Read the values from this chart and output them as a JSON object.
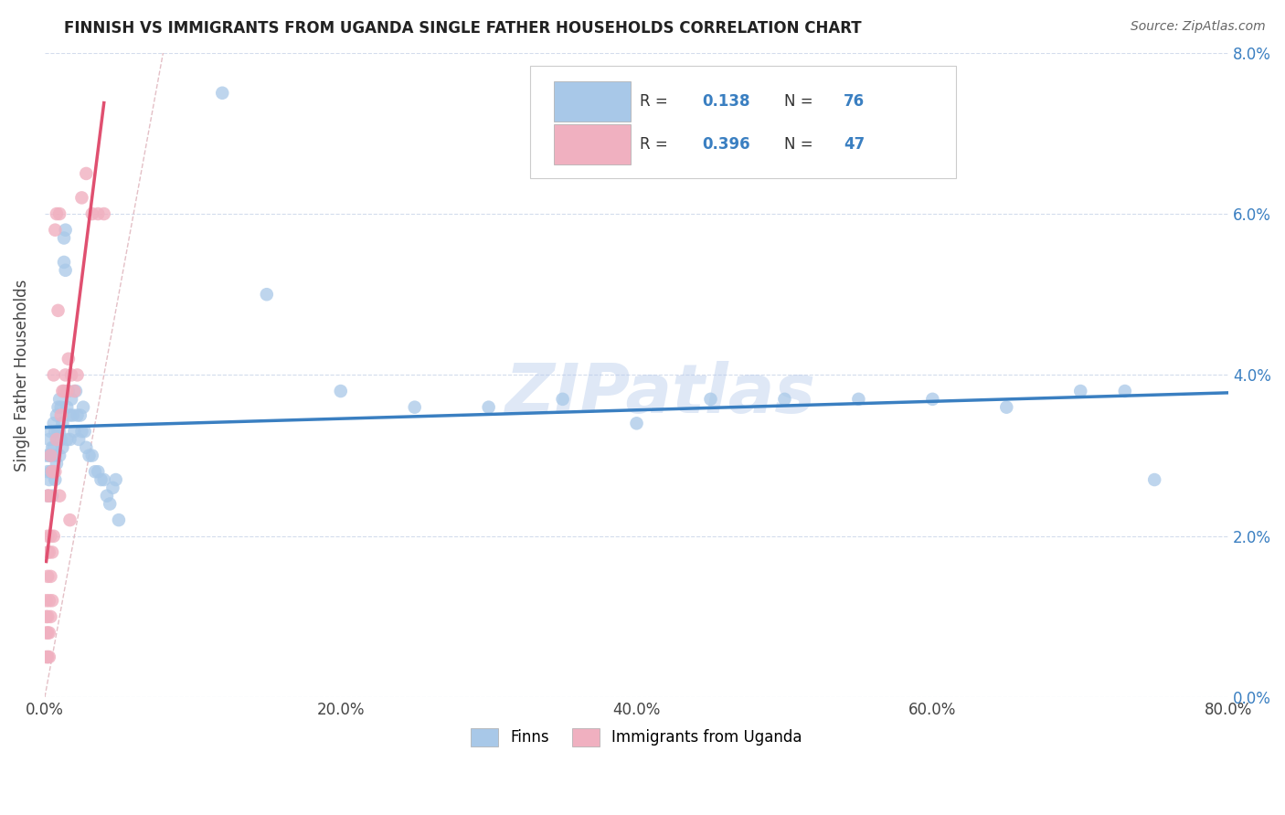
{
  "title": "FINNISH VS IMMIGRANTS FROM UGANDA SINGLE FATHER HOUSEHOLDS CORRELATION CHART",
  "source": "Source: ZipAtlas.com",
  "ylabel": "Single Father Households",
  "finn_color": "#a8c8e8",
  "uganda_color": "#f0b0c0",
  "finn_line_color": "#3a7fc1",
  "uganda_line_color": "#e05070",
  "diagonal_color": "#e8b0b8",
  "watermark": "ZIPatlas",
  "xlim": [
    0.0,
    0.8
  ],
  "ylim": [
    0.0,
    0.08
  ],
  "x_ticks": [
    0.0,
    0.2,
    0.4,
    0.6,
    0.8
  ],
  "y_ticks": [
    0.0,
    0.02,
    0.04,
    0.06,
    0.08
  ],
  "finn_R": 0.138,
  "finn_N": 76,
  "uganda_R": 0.396,
  "uganda_N": 47,
  "finn_scatter_x": [
    0.001,
    0.002,
    0.002,
    0.003,
    0.003,
    0.003,
    0.004,
    0.004,
    0.004,
    0.005,
    0.005,
    0.005,
    0.006,
    0.006,
    0.006,
    0.007,
    0.007,
    0.007,
    0.008,
    0.008,
    0.008,
    0.009,
    0.009,
    0.01,
    0.01,
    0.01,
    0.011,
    0.011,
    0.012,
    0.012,
    0.013,
    0.013,
    0.014,
    0.014,
    0.015,
    0.015,
    0.016,
    0.017,
    0.017,
    0.018,
    0.019,
    0.02,
    0.021,
    0.022,
    0.023,
    0.024,
    0.025,
    0.026,
    0.027,
    0.028,
    0.03,
    0.032,
    0.034,
    0.036,
    0.038,
    0.04,
    0.042,
    0.044,
    0.046,
    0.048,
    0.05,
    0.12,
    0.15,
    0.2,
    0.25,
    0.3,
    0.35,
    0.4,
    0.45,
    0.5,
    0.55,
    0.6,
    0.65,
    0.7,
    0.73,
    0.75
  ],
  "finn_scatter_y": [
    0.03,
    0.028,
    0.025,
    0.032,
    0.03,
    0.027,
    0.033,
    0.03,
    0.028,
    0.031,
    0.028,
    0.025,
    0.034,
    0.031,
    0.028,
    0.033,
    0.03,
    0.027,
    0.035,
    0.032,
    0.029,
    0.036,
    0.033,
    0.037,
    0.033,
    0.03,
    0.036,
    0.032,
    0.034,
    0.031,
    0.054,
    0.057,
    0.053,
    0.058,
    0.036,
    0.032,
    0.038,
    0.035,
    0.032,
    0.037,
    0.035,
    0.033,
    0.038,
    0.035,
    0.032,
    0.035,
    0.033,
    0.036,
    0.033,
    0.031,
    0.03,
    0.03,
    0.028,
    0.028,
    0.027,
    0.027,
    0.025,
    0.024,
    0.026,
    0.027,
    0.022,
    0.075,
    0.05,
    0.038,
    0.036,
    0.036,
    0.037,
    0.034,
    0.037,
    0.037,
    0.037,
    0.037,
    0.036,
    0.038,
    0.038,
    0.027
  ],
  "uganda_scatter_x": [
    0.001,
    0.001,
    0.001,
    0.001,
    0.002,
    0.002,
    0.002,
    0.002,
    0.002,
    0.002,
    0.002,
    0.003,
    0.003,
    0.003,
    0.003,
    0.003,
    0.004,
    0.004,
    0.004,
    0.004,
    0.005,
    0.005,
    0.005,
    0.006,
    0.006,
    0.007,
    0.007,
    0.008,
    0.008,
    0.009,
    0.01,
    0.01,
    0.011,
    0.012,
    0.013,
    0.014,
    0.015,
    0.016,
    0.017,
    0.018,
    0.02,
    0.022,
    0.025,
    0.028,
    0.032,
    0.036,
    0.04
  ],
  "uganda_scatter_y": [
    0.005,
    0.008,
    0.01,
    0.012,
    0.005,
    0.008,
    0.01,
    0.015,
    0.018,
    0.02,
    0.025,
    0.005,
    0.008,
    0.012,
    0.018,
    0.025,
    0.01,
    0.015,
    0.02,
    0.03,
    0.012,
    0.018,
    0.028,
    0.02,
    0.04,
    0.028,
    0.058,
    0.032,
    0.06,
    0.048,
    0.025,
    0.06,
    0.035,
    0.038,
    0.038,
    0.04,
    0.038,
    0.042,
    0.022,
    0.04,
    0.038,
    0.04,
    0.062,
    0.065,
    0.06,
    0.06,
    0.06
  ]
}
